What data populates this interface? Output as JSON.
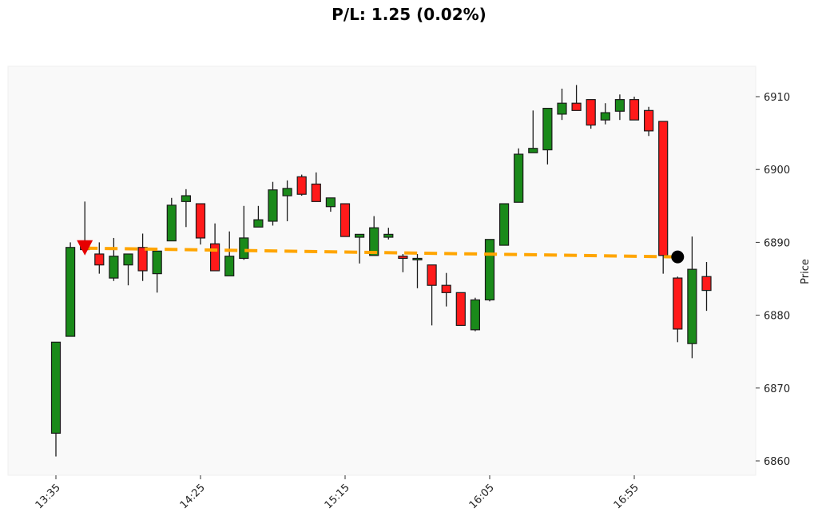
{
  "title": "P/L: 1.25 (0.02%)",
  "colors": {
    "background": "#ffffff",
    "plot_background": "#f9f9f9",
    "up": "#1a8a1a",
    "down": "#ff1a1a",
    "edge": "#1a1a1a",
    "trade_line": "#ffa500",
    "entry_marker": "#e60000",
    "exit_marker": "#000000"
  },
  "chart_data": {
    "type": "candlestick",
    "title": "P/L: 1.25 (0.02%)",
    "xlabel": "",
    "ylabel": "Price",
    "ylim": [
      6858.2,
      6914.3
    ],
    "y_ticks": [
      6860,
      6870,
      6880,
      6890,
      6900,
      6910
    ],
    "x_ticks": [
      {
        "index": 0,
        "label": "13:35"
      },
      {
        "index": 10,
        "label": "14:25"
      },
      {
        "index": 20,
        "label": "15:15"
      },
      {
        "index": 30,
        "label": "16:05"
      },
      {
        "index": 40,
        "label": "16:55"
      }
    ],
    "grid": false,
    "y_axis_position": "right",
    "interval_minutes": 5,
    "candles": [
      {
        "t": "13:35",
        "o": 6863.8,
        "h": 6876.3,
        "l": 6860.6,
        "c": 6876.3
      },
      {
        "t": "13:40",
        "o": 6877.1,
        "h": 6890.0,
        "l": 6877.1,
        "c": 6889.3
      },
      {
        "t": "13:45",
        "o": 6889.5,
        "h": 6895.6,
        "l": 6888.5,
        "c": 6889.0
      },
      {
        "t": "13:50",
        "o": 6888.4,
        "h": 6890.0,
        "l": 6885.7,
        "c": 6886.9
      },
      {
        "t": "13:55",
        "o": 6885.1,
        "h": 6890.6,
        "l": 6884.7,
        "c": 6888.1
      },
      {
        "t": "14:00",
        "o": 6886.9,
        "h": 6888.4,
        "l": 6884.1,
        "c": 6888.4
      },
      {
        "t": "14:05",
        "o": 6889.3,
        "h": 6891.2,
        "l": 6884.7,
        "c": 6886.1
      },
      {
        "t": "14:10",
        "o": 6885.7,
        "h": 6888.8,
        "l": 6883.1,
        "c": 6888.8
      },
      {
        "t": "14:15",
        "o": 6890.2,
        "h": 6896.1,
        "l": 6890.2,
        "c": 6895.1
      },
      {
        "t": "14:20",
        "o": 6895.6,
        "h": 6897.3,
        "l": 6892.1,
        "c": 6896.4
      },
      {
        "t": "14:25",
        "o": 6895.3,
        "h": 6895.3,
        "l": 6889.7,
        "c": 6890.6
      },
      {
        "t": "14:30",
        "o": 6889.8,
        "h": 6892.6,
        "l": 6886.1,
        "c": 6886.1
      },
      {
        "t": "14:35",
        "o": 6885.4,
        "h": 6891.5,
        "l": 6885.4,
        "c": 6888.1
      },
      {
        "t": "14:40",
        "o": 6887.8,
        "h": 6895.0,
        "l": 6887.6,
        "c": 6890.6
      },
      {
        "t": "14:45",
        "o": 6892.1,
        "h": 6895.0,
        "l": 6892.1,
        "c": 6893.1
      },
      {
        "t": "14:50",
        "o": 6892.9,
        "h": 6898.3,
        "l": 6892.3,
        "c": 6897.2
      },
      {
        "t": "14:55",
        "o": 6896.4,
        "h": 6898.5,
        "l": 6892.9,
        "c": 6897.4
      },
      {
        "t": "15:00",
        "o": 6899.0,
        "h": 6899.3,
        "l": 6896.4,
        "c": 6896.6
      },
      {
        "t": "15:05",
        "o": 6898.0,
        "h": 6899.6,
        "l": 6895.6,
        "c": 6895.6
      },
      {
        "t": "15:10",
        "o": 6894.9,
        "h": 6896.1,
        "l": 6894.2,
        "c": 6896.1
      },
      {
        "t": "15:15",
        "o": 6895.3,
        "h": 6895.3,
        "l": 6890.8,
        "c": 6890.8
      },
      {
        "t": "15:20",
        "o": 6890.7,
        "h": 6891.1,
        "l": 6887.1,
        "c": 6891.1
      },
      {
        "t": "15:25",
        "o": 6888.2,
        "h": 6893.6,
        "l": 6888.2,
        "c": 6892.0
      },
      {
        "t": "15:30",
        "o": 6890.7,
        "h": 6892.0,
        "l": 6890.4,
        "c": 6891.1
      },
      {
        "t": "15:35",
        "o": 6888.1,
        "h": 6888.4,
        "l": 6885.9,
        "c": 6887.8
      },
      {
        "t": "15:40",
        "o": 6887.6,
        "h": 6888.4,
        "l": 6883.7,
        "c": 6887.8
      },
      {
        "t": "15:45",
        "o": 6886.9,
        "h": 6886.9,
        "l": 6878.6,
        "c": 6884.1
      },
      {
        "t": "15:50",
        "o": 6884.1,
        "h": 6885.8,
        "l": 6881.2,
        "c": 6883.1
      },
      {
        "t": "15:55",
        "o": 6883.1,
        "h": 6883.1,
        "l": 6878.6,
        "c": 6878.6
      },
      {
        "t": "16:00",
        "o": 6878.0,
        "h": 6882.4,
        "l": 6877.8,
        "c": 6882.1
      },
      {
        "t": "16:05",
        "o": 6882.1,
        "h": 6890.4,
        "l": 6881.9,
        "c": 6890.4
      },
      {
        "t": "16:10",
        "o": 6889.6,
        "h": 6895.3,
        "l": 6889.6,
        "c": 6895.3
      },
      {
        "t": "16:15",
        "o": 6895.5,
        "h": 6902.9,
        "l": 6895.5,
        "c": 6902.1
      },
      {
        "t": "16:20",
        "o": 6902.3,
        "h": 6908.1,
        "l": 6902.3,
        "c": 6902.9
      },
      {
        "t": "16:25",
        "o": 6902.7,
        "h": 6908.4,
        "l": 6900.7,
        "c": 6908.4
      },
      {
        "t": "16:30",
        "o": 6907.6,
        "h": 6911.1,
        "l": 6906.8,
        "c": 6909.1
      },
      {
        "t": "16:35",
        "o": 6909.1,
        "h": 6911.6,
        "l": 6908.1,
        "c": 6908.1
      },
      {
        "t": "16:40",
        "o": 6909.6,
        "h": 6909.6,
        "l": 6905.6,
        "c": 6906.1
      },
      {
        "t": "16:45",
        "o": 6906.8,
        "h": 6909.1,
        "l": 6906.2,
        "c": 6907.8
      },
      {
        "t": "16:50",
        "o": 6908.0,
        "h": 6910.3,
        "l": 6906.8,
        "c": 6909.6
      },
      {
        "t": "16:55",
        "o": 6909.6,
        "h": 6910.0,
        "l": 6906.8,
        "c": 6906.8
      },
      {
        "t": "17:00",
        "o": 6908.1,
        "h": 6908.6,
        "l": 6904.6,
        "c": 6905.3
      },
      {
        "t": "17:05",
        "o": 6906.6,
        "h": 6906.6,
        "l": 6885.7,
        "c": 6888.2
      },
      {
        "t": "17:10",
        "o": 6885.1,
        "h": 6885.3,
        "l": 6876.3,
        "c": 6878.1
      },
      {
        "t": "17:15",
        "o": 6876.1,
        "h": 6890.8,
        "l": 6874.1,
        "c": 6886.3
      },
      {
        "t": "17:20",
        "o": 6885.3,
        "h": 6887.3,
        "l": 6880.6,
        "c": 6883.4
      }
    ],
    "trade": {
      "side": "short",
      "entry": {
        "index": 2,
        "price": 6889.2,
        "marker": "red-down-triangle"
      },
      "exit": {
        "index": 43,
        "price": 6888.0,
        "marker": "black-circle"
      },
      "line_style": "dashed",
      "pnl": 1.25,
      "pnl_pct": "0.02%"
    }
  }
}
